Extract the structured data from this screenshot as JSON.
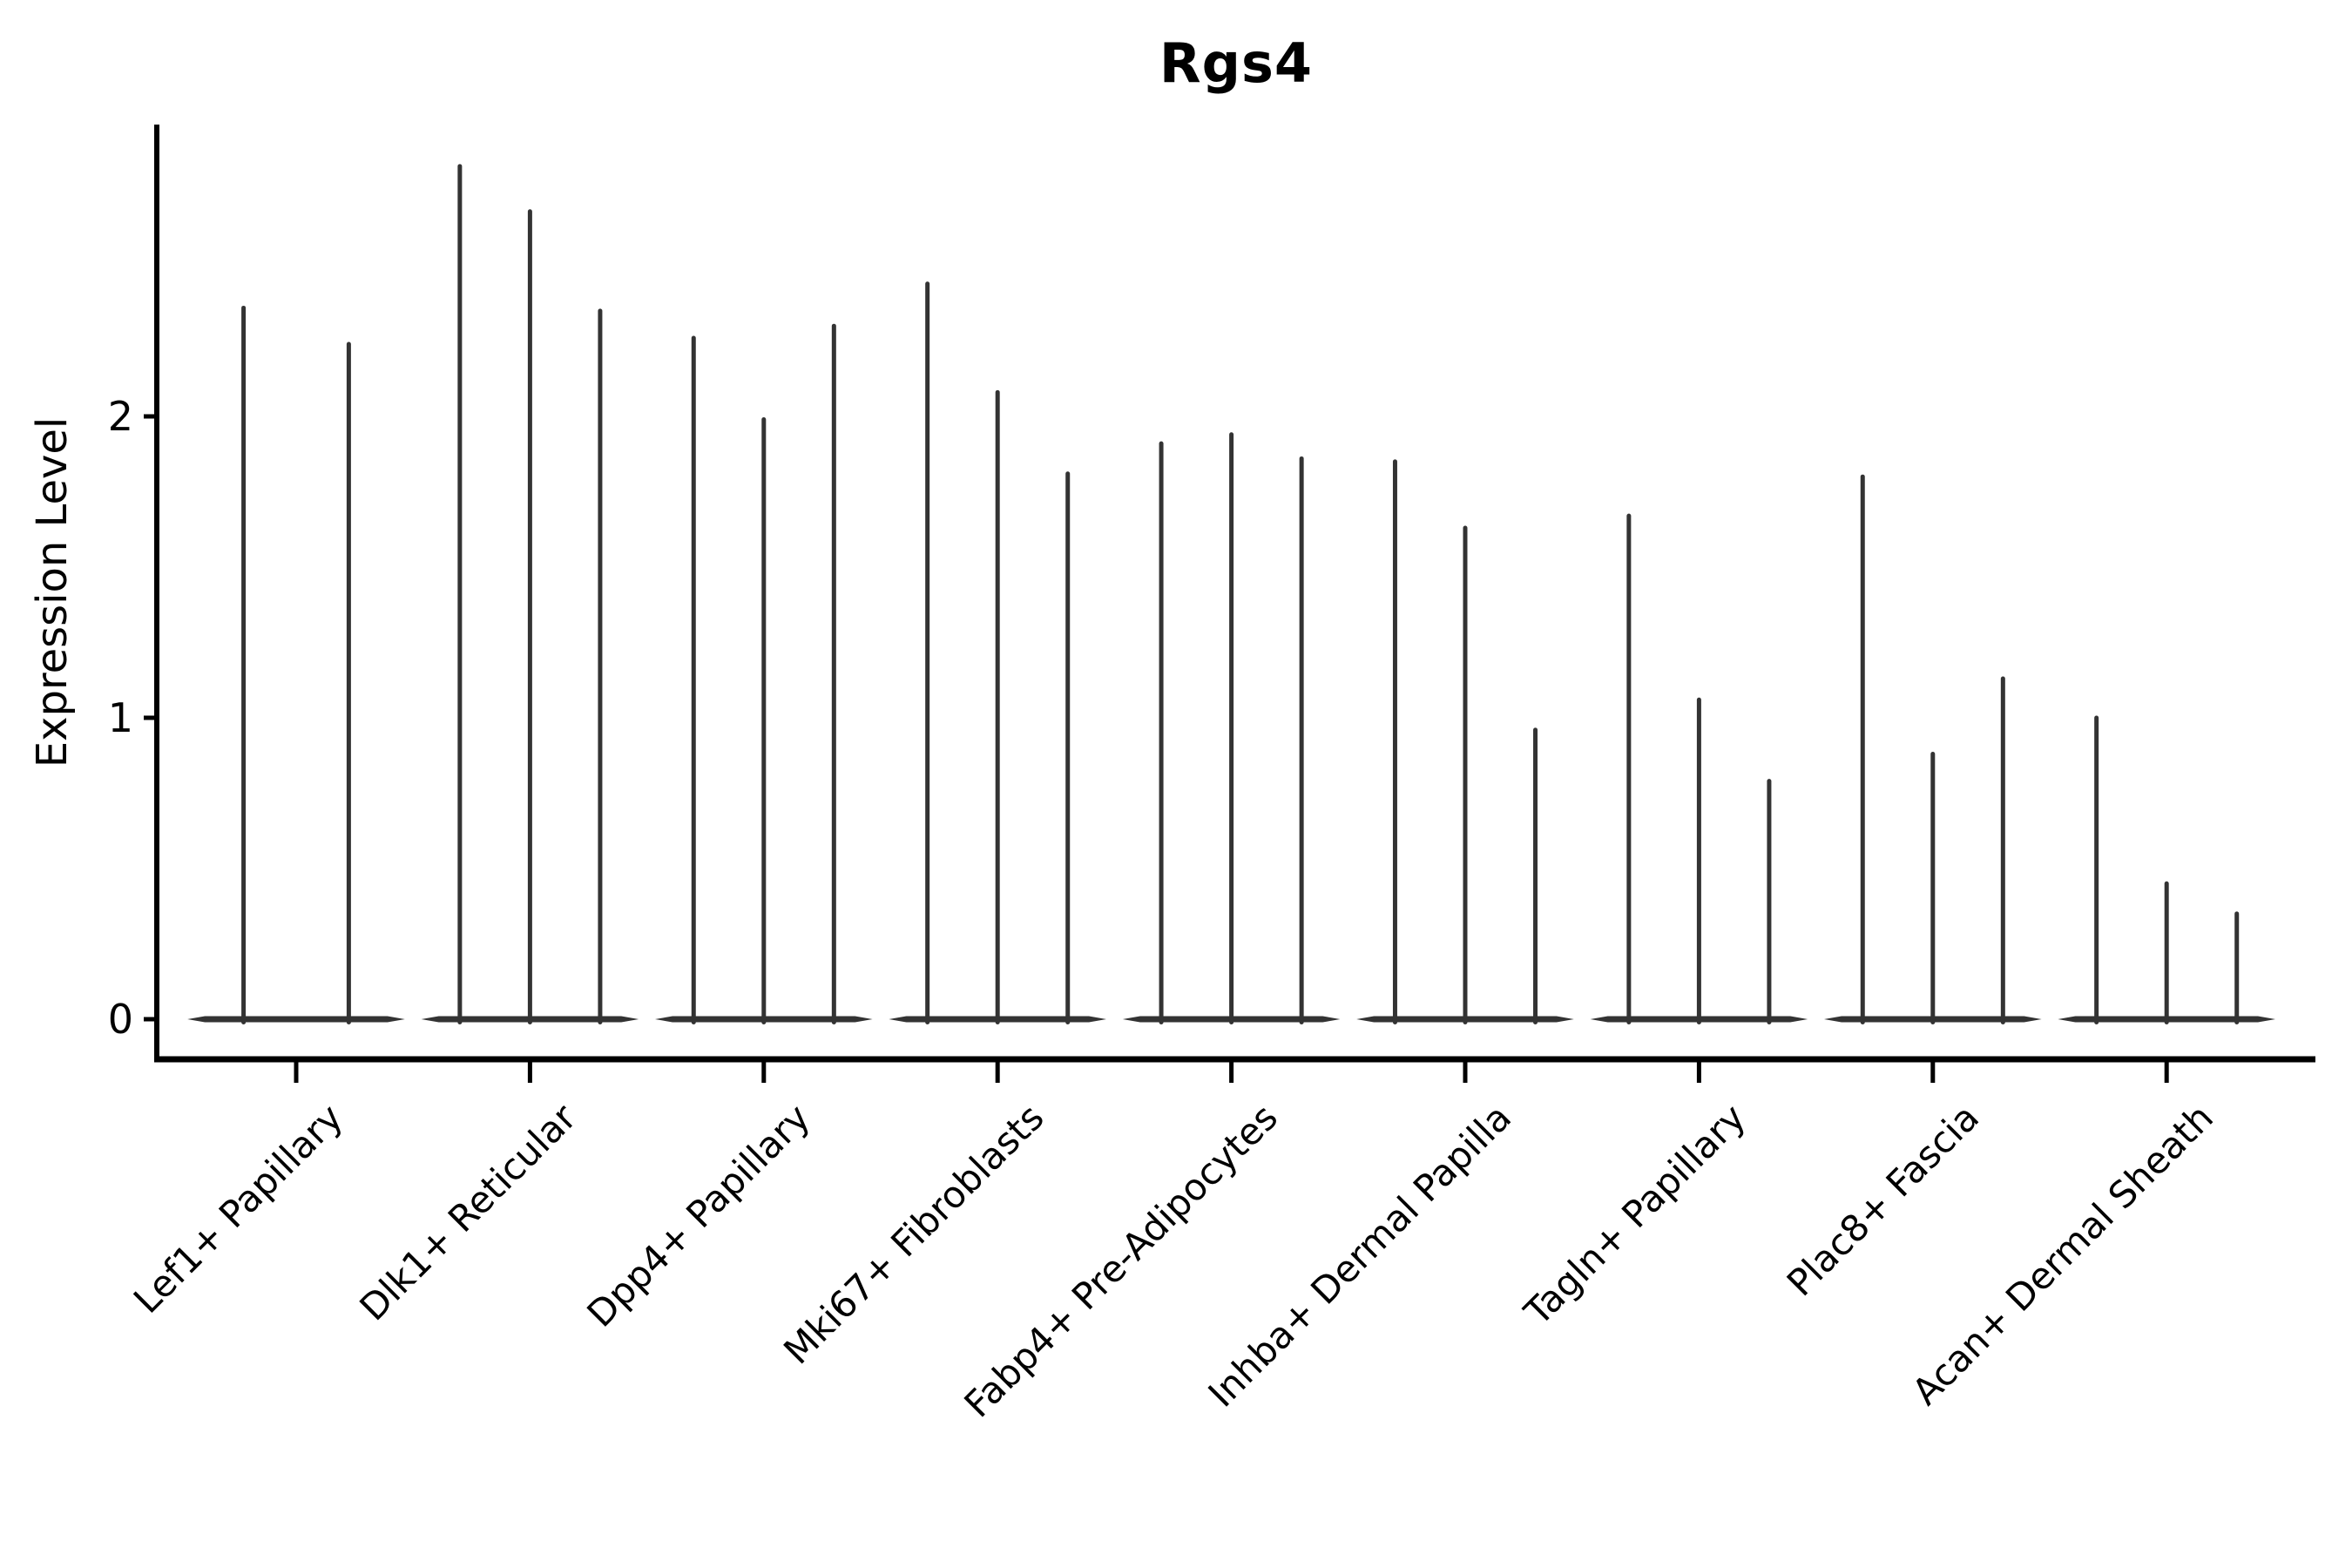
{
  "chart_data": {
    "type": "violin",
    "title": "Rgs4",
    "ylabel": "Expression Level",
    "xlabel": "",
    "yticks": [
      0,
      1,
      2
    ],
    "ylim": [
      -0.13,
      2.97
    ],
    "grid": false,
    "legend": "none",
    "violin_color": "#333333",
    "axis_color": "#000000",
    "groups": [
      {
        "category": "Lef1+ Papillary",
        "violin_maxima": [
          2.36,
          2.24
        ]
      },
      {
        "category": "Dlk1+ Reticular",
        "violin_maxima": [
          2.83,
          2.68,
          2.35
        ]
      },
      {
        "category": "Dpp4+ Papillary",
        "violin_maxima": [
          2.26,
          1.99,
          2.3
        ]
      },
      {
        "category": "Mki67+ Fibroblasts",
        "violin_maxima": [
          2.44,
          2.08,
          1.81
        ]
      },
      {
        "category": "Fabp4+ Pre-Adipocytes",
        "violin_maxima": [
          1.91,
          1.94,
          1.86
        ]
      },
      {
        "category": "Inhba+ Dermal Papilla",
        "violin_maxima": [
          1.85,
          1.63,
          0.96
        ]
      },
      {
        "category": "Tagln+ Papillary",
        "violin_maxima": [
          1.67,
          1.06,
          0.79
        ]
      },
      {
        "category": "Plac8+ Fascia",
        "violin_maxima": [
          1.8,
          0.88,
          1.13
        ]
      },
      {
        "category": "Acan+ Dermal Sheath",
        "violin_maxima": [
          1.0,
          0.45,
          0.35
        ]
      }
    ]
  }
}
